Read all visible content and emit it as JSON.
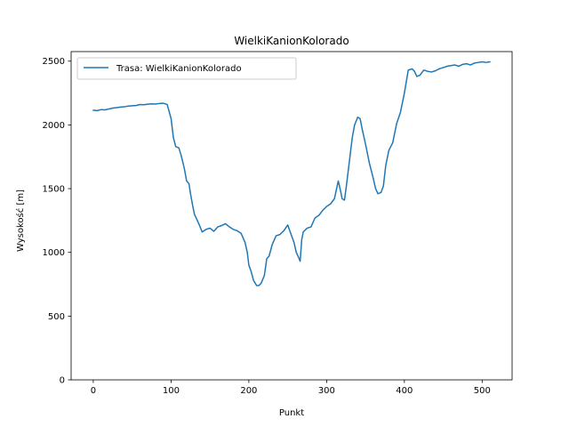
{
  "chart_data": {
    "type": "line",
    "title": "WielkiKanionKolorado",
    "xlabel": "Punkt",
    "ylabel": "Wysokość [m]",
    "xlim": [
      -28.5,
      538.5
    ],
    "ylim": [
      0,
      2575
    ],
    "xticks": [
      0,
      100,
      200,
      300,
      400,
      500
    ],
    "yticks": [
      0,
      500,
      1000,
      1500,
      2000,
      2500
    ],
    "grid": false,
    "legend": {
      "position": "top-left"
    },
    "series": [
      {
        "name": "Trasa: WielkiKanionKolorado",
        "color": "#1f77b4",
        "x": [
          0,
          5,
          10,
          15,
          20,
          25,
          30,
          35,
          40,
          45,
          50,
          55,
          60,
          65,
          70,
          75,
          80,
          85,
          90,
          95,
          100,
          103,
          106,
          110,
          113,
          117,
          120,
          123,
          125,
          128,
          130,
          133,
          136,
          140,
          145,
          150,
          155,
          160,
          165,
          170,
          175,
          180,
          185,
          190,
          195,
          198,
          200,
          203,
          206,
          210,
          213,
          216,
          218,
          220,
          223,
          226,
          230,
          235,
          240,
          245,
          250,
          255,
          258,
          261,
          264,
          266,
          268,
          270,
          275,
          280,
          285,
          290,
          295,
          300,
          305,
          310,
          315,
          318,
          320,
          323,
          326,
          330,
          333,
          336,
          340,
          343,
          346,
          350,
          355,
          360,
          363,
          366,
          370,
          373,
          376,
          380,
          385,
          390,
          395,
          400,
          405,
          410,
          413,
          416,
          420,
          425,
          430,
          435,
          440,
          445,
          450,
          455,
          460,
          465,
          470,
          475,
          480,
          485,
          490,
          495,
          500,
          505,
          510
        ],
        "y": [
          2115,
          2112,
          2120,
          2118,
          2125,
          2132,
          2135,
          2140,
          2142,
          2148,
          2150,
          2152,
          2160,
          2158,
          2162,
          2165,
          2163,
          2168,
          2170,
          2160,
          2050,
          1900,
          1830,
          1820,
          1760,
          1660,
          1560,
          1540,
          1460,
          1360,
          1300,
          1260,
          1220,
          1160,
          1180,
          1190,
          1165,
          1200,
          1210,
          1225,
          1200,
          1180,
          1170,
          1150,
          1080,
          1000,
          900,
          850,
          780,
          740,
          740,
          760,
          790,
          820,
          950,
          970,
          1060,
          1130,
          1140,
          1170,
          1215,
          1130,
          1080,
          1000,
          960,
          930,
          1100,
          1160,
          1190,
          1200,
          1270,
          1290,
          1330,
          1360,
          1380,
          1420,
          1560,
          1480,
          1420,
          1410,
          1550,
          1750,
          1900,
          2000,
          2060,
          2050,
          1960,
          1850,
          1700,
          1580,
          1500,
          1460,
          1470,
          1520,
          1680,
          1800,
          1860,
          2010,
          2100,
          2250,
          2430,
          2440,
          2420,
          2380,
          2390,
          2430,
          2420,
          2415,
          2425,
          2440,
          2450,
          2460,
          2465,
          2470,
          2460,
          2475,
          2480,
          2470,
          2485,
          2490,
          2495,
          2490,
          2495
        ]
      }
    ]
  }
}
